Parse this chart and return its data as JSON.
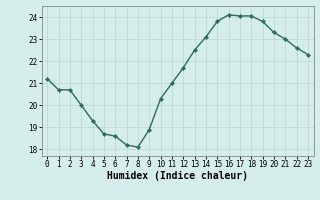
{
  "x": [
    0,
    1,
    2,
    3,
    4,
    5,
    6,
    7,
    8,
    9,
    10,
    11,
    12,
    13,
    14,
    15,
    16,
    17,
    18,
    19,
    20,
    21,
    22,
    23
  ],
  "y": [
    21.2,
    20.7,
    20.7,
    20.0,
    19.3,
    18.7,
    18.6,
    18.2,
    18.1,
    18.9,
    20.3,
    21.0,
    21.7,
    22.5,
    23.1,
    23.8,
    24.1,
    24.05,
    24.05,
    23.8,
    23.3,
    23.0,
    22.6,
    22.3
  ],
  "xlabel": "Humidex (Indice chaleur)",
  "ylim": [
    17.7,
    24.5
  ],
  "xlim": [
    -0.5,
    23.5
  ],
  "yticks": [
    18,
    19,
    20,
    21,
    22,
    23,
    24
  ],
  "xticks": [
    0,
    1,
    2,
    3,
    4,
    5,
    6,
    7,
    8,
    9,
    10,
    11,
    12,
    13,
    14,
    15,
    16,
    17,
    18,
    19,
    20,
    21,
    22,
    23
  ],
  "line_color": "#2e6b5e",
  "marker": "D",
  "marker_size": 2.2,
  "bg_color": "#d6eeeb",
  "grid_color": "#c0ddd9",
  "tick_fontsize": 5.5,
  "xlabel_fontsize": 7.0
}
